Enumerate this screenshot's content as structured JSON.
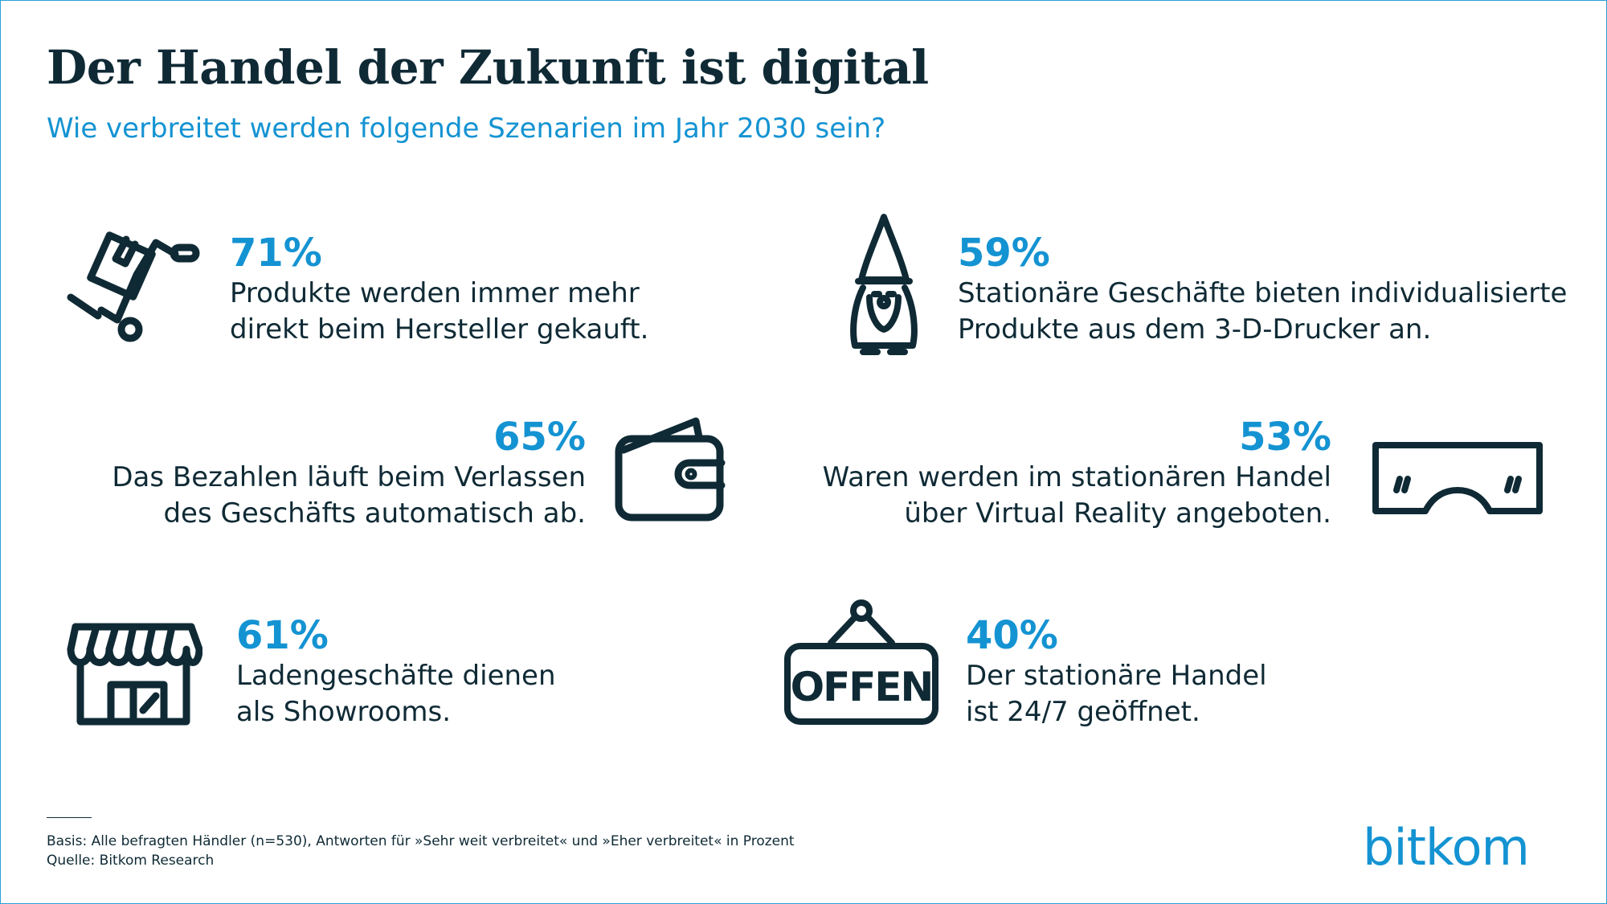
{
  "header": {
    "title": "Der Handel der Zukunft ist digital",
    "subtitle": "Wie verbreitet werden folgende Szenarien im Jahr 2030 sein?"
  },
  "items": [
    {
      "pct": "71%",
      "line1": "Produkte werden immer mehr",
      "line2": "direkt beim Hersteller gekauft.",
      "icon": "hand-truck-icon"
    },
    {
      "pct": "59%",
      "line1": "Stationäre Geschäfte bieten individualisierte",
      "line2": "Produkte aus dem 3-D-Drucker an.",
      "icon": "garden-gnome-icon"
    },
    {
      "pct": "65%",
      "line1": "Das Bezahlen läuft beim Verlassen",
      "line2": "des Geschäfts automatisch ab.",
      "icon": "wallet-icon"
    },
    {
      "pct": "53%",
      "line1": "Waren werden im stationären Handel",
      "line2": "über Virtual Reality angeboten.",
      "icon": "vr-glasses-icon"
    },
    {
      "pct": "61%",
      "line1": "Ladengeschäfte dienen",
      "line2": "als Showrooms.",
      "icon": "storefront-icon"
    },
    {
      "pct": "40%",
      "line1": "Der stationäre Handel",
      "line2": "ist 24/7 geöffnet.",
      "icon": "open-sign-icon",
      "sign_text": "OFFEN"
    }
  ],
  "footer": {
    "basis": "Basis: Alle befragten Händler (n=530), Antworten für »Sehr weit verbreitet« und »Eher verbreitet« in Prozent",
    "source": "Quelle: Bitkom Research",
    "logo": "bitkom"
  },
  "colors": {
    "accent": "#1493d2",
    "text": "#0f2a35",
    "border": "#2a9fd6"
  },
  "chart_data": {
    "type": "table",
    "categories": [
      "Produkte werden immer mehr direkt beim Hersteller gekauft.",
      "Stationäre Geschäfte bieten individualisierte Produkte aus dem 3-D-Drucker an.",
      "Das Bezahlen läuft beim Verlassen des Geschäfts automatisch ab.",
      "Waren werden im stationären Handel über Virtual Reality angeboten.",
      "Ladengeschäfte dienen als Showrooms.",
      "Der stationäre Handel ist 24/7 geöffnet."
    ],
    "values": [
      71,
      59,
      65,
      53,
      61,
      40
    ],
    "unit": "%"
  }
}
